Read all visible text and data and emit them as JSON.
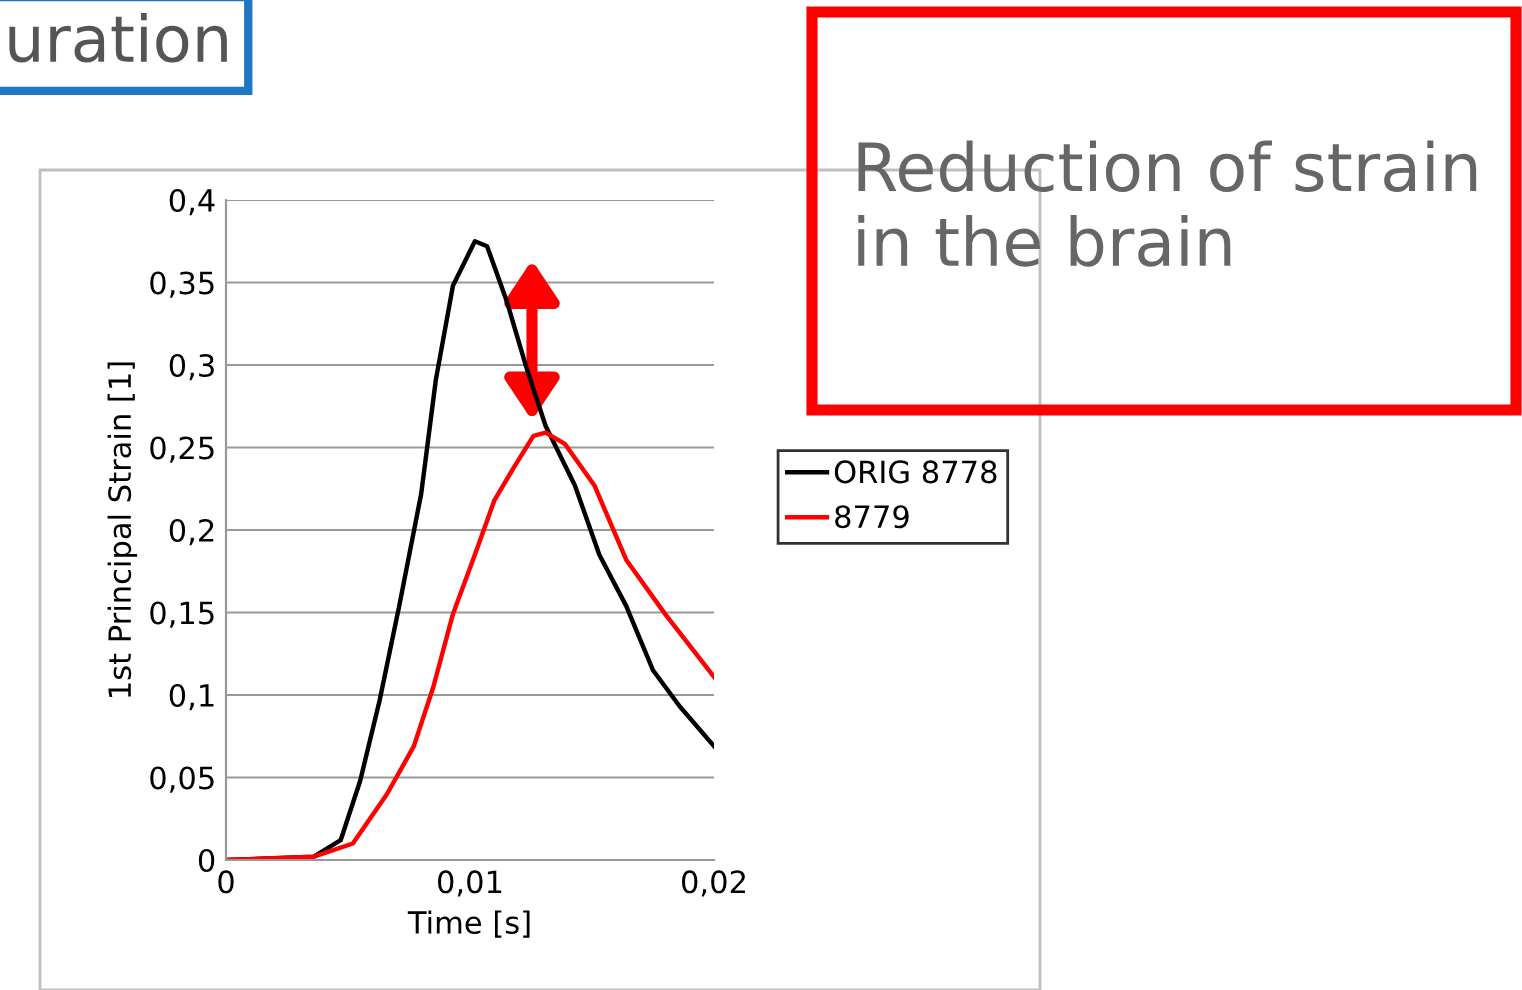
{
  "chart_data": {
    "type": "line",
    "xlabel": "Time [s]",
    "ylabel": "1st Principal Strain [1]",
    "xlim": [
      0,
      0.02
    ],
    "ylim": [
      0,
      0.4
    ],
    "xticks": [
      {
        "value": 0,
        "label": "0"
      },
      {
        "value": 0.01,
        "label": "0,01"
      },
      {
        "value": 0.02,
        "label": "0,02"
      }
    ],
    "yticks": [
      {
        "value": 0,
        "label": "0"
      },
      {
        "value": 0.05,
        "label": "0,05"
      },
      {
        "value": 0.1,
        "label": "0,1"
      },
      {
        "value": 0.15,
        "label": "0,15"
      },
      {
        "value": 0.2,
        "label": "0,2"
      },
      {
        "value": 0.25,
        "label": "0,25"
      },
      {
        "value": 0.3,
        "label": "0,3"
      },
      {
        "value": 0.35,
        "label": "0,35"
      },
      {
        "value": 0.4,
        "label": "0,4"
      }
    ],
    "grid": "y",
    "legend": "right",
    "line_style": "solid",
    "marker": "none",
    "series": [
      {
        "name": "ORIG 8778",
        "color": "#000000",
        "x": [
          0,
          0.0036,
          0.0047,
          0.0055,
          0.0063,
          0.0071,
          0.008,
          0.0086,
          0.0093,
          0.0102,
          0.0107,
          0.0115,
          0.0123,
          0.0131,
          0.0143,
          0.0153,
          0.0164,
          0.0175,
          0.0186,
          0.02
        ],
        "values": [
          0,
          0.002,
          0.012,
          0.048,
          0.097,
          0.154,
          0.222,
          0.291,
          0.348,
          0.375,
          0.372,
          0.339,
          0.299,
          0.263,
          0.227,
          0.185,
          0.154,
          0.115,
          0.093,
          0.069
        ]
      },
      {
        "name": "8779",
        "color": "#ff0000",
        "x": [
          0,
          0.0036,
          0.0052,
          0.0066,
          0.0077,
          0.0085,
          0.0093,
          0.0102,
          0.011,
          0.0118,
          0.0126,
          0.0131,
          0.0139,
          0.0151,
          0.0164,
          0.018,
          0.02
        ],
        "values": [
          0,
          0.002,
          0.01,
          0.04,
          0.069,
          0.105,
          0.149,
          0.185,
          0.218,
          0.238,
          0.257,
          0.259,
          0.252,
          0.227,
          0.182,
          0.149,
          0.111
        ]
      }
    ],
    "annotations": [
      "uration",
      "Reduction of strain in the brain"
    ]
  }
}
